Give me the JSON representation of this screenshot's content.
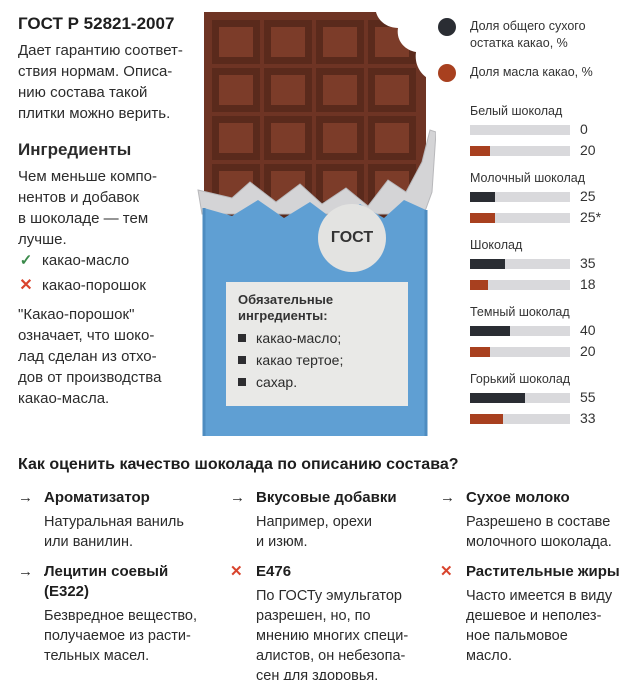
{
  "gost": {
    "title": "ГОСТ Р 52821-2007",
    "desc_lines": [
      "Дает гарантию соответ-",
      "ствия нормам. Описа-",
      "нию состава такой",
      "плитки можно верить."
    ]
  },
  "ingredients": {
    "title": "Ингредиенты",
    "desc_lines": [
      "Чем меньше компо-",
      "нентов и добавок",
      "в шоколаде — тем",
      "лучше."
    ],
    "good": "какао-масло",
    "bad": "какао-порошок",
    "good_icon": "check-icon",
    "bad_icon": "cross-icon",
    "note_lines": [
      "\"Какао-порошок\"",
      "означает, что шоко-",
      "лад сделан из отхо-",
      "дов от производства",
      "какао-масла."
    ]
  },
  "bar": {
    "badge": "ГОСТ",
    "required_title_lines": [
      "Обязательные",
      "ингредиенты:"
    ],
    "required_items": [
      "какао-масло;",
      "какао тертое;",
      "сахар."
    ],
    "colors": {
      "chocolate": "#6e3424",
      "wrapper": "#5f9fd3",
      "foil": "#d4d4d6"
    }
  },
  "legend": {
    "dry": {
      "lines": [
        "Доля общего сухого",
        "остатка какао, %"
      ],
      "color": "#2a2d33"
    },
    "butter": {
      "text": "Доля масла какао, %",
      "color": "#a8401f"
    }
  },
  "chart_data": {
    "type": "bar",
    "orientation": "horizontal",
    "categories": [
      "Белый шоколад",
      "Молочный шоколад",
      "Шоколад",
      "Темный шоколад",
      "Горький шоколад"
    ],
    "series": [
      {
        "name": "Доля общего сухого остатка какао, %",
        "values": [
          0,
          25,
          35,
          40,
          55
        ],
        "labels": [
          "0",
          "25",
          "35",
          "40",
          "55"
        ],
        "color": "#2a2d33"
      },
      {
        "name": "Доля масла какао, %",
        "values": [
          20,
          25,
          18,
          20,
          33
        ],
        "labels": [
          "20",
          "25*",
          "18",
          "20",
          "33"
        ],
        "color": "#a8401f"
      }
    ],
    "xlim": [
      0,
      100
    ]
  },
  "quality": {
    "title": "Как оценить качество шоколада по описанию состава?",
    "tips": [
      {
        "head_lines": [
          "Ароматизатор"
        ],
        "body_lines": [
          "Натуральная ваниль",
          "или ванилин."
        ],
        "icon": "arrow-right-icon",
        "kind": "ok"
      },
      {
        "head_lines": [
          "Вкусовые добавки"
        ],
        "body_lines": [
          "Например, орехи",
          "и изюм."
        ],
        "icon": "arrow-right-icon",
        "kind": "ok"
      },
      {
        "head_lines": [
          "Сухое молоко"
        ],
        "body_lines": [
          "Разрешено в составе",
          "молочного шоколада."
        ],
        "icon": "arrow-right-icon",
        "kind": "ok"
      },
      {
        "head_lines": [
          "Лецитин соевый",
          "(E322)"
        ],
        "body_lines": [
          "Безвредное вещество,",
          "получаемое из расти-",
          "тельных масел."
        ],
        "icon": "arrow-right-icon",
        "kind": "ok"
      },
      {
        "head_lines": [
          "E476"
        ],
        "body_lines": [
          "По ГОСТу эмульгатор",
          "разрешен, но, по",
          "мнению многих специ-",
          "алистов, он небезопа-",
          "сен для здоровья."
        ],
        "icon": "cross-icon",
        "kind": "bad"
      },
      {
        "head_lines": [
          "Растительные жиры"
        ],
        "body_lines": [
          "Часто имеется в виду",
          "дешевое и неполез-",
          "ное пальмовое",
          "масло."
        ],
        "icon": "cross-icon",
        "kind": "bad"
      }
    ]
  }
}
